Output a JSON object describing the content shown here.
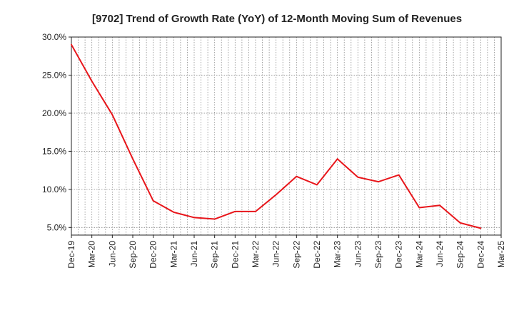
{
  "chart_data": {
    "type": "line",
    "title": "[9702]  Trend of Growth Rate (YoY) of 12-Month Moving Sum of Revenues",
    "xlabel": "",
    "ylabel": "",
    "ylim": [
      4.0,
      30.0
    ],
    "y_ticks": [
      {
        "value": 5.0,
        "label": "5.0%"
      },
      {
        "value": 10.0,
        "label": "10.0%"
      },
      {
        "value": 15.0,
        "label": "15.0%"
      },
      {
        "value": 20.0,
        "label": "20.0%"
      },
      {
        "value": 25.0,
        "label": "25.0%"
      },
      {
        "value": 30.0,
        "label": "30.0%"
      }
    ],
    "x_ticks": [
      "Dec-19",
      "Mar-20",
      "Jun-20",
      "Sep-20",
      "Dec-20",
      "Mar-21",
      "Jun-21",
      "Sep-21",
      "Dec-21",
      "Mar-22",
      "Jun-22",
      "Sep-22",
      "Dec-22",
      "Mar-23",
      "Jun-23",
      "Sep-23",
      "Dec-23",
      "Mar-24",
      "Jun-24",
      "Sep-24",
      "Dec-24",
      "Mar-25"
    ],
    "grid": true,
    "series": [
      {
        "color": "#e8161b",
        "x": [
          "Dec-19",
          "Mar-20",
          "Jun-20",
          "Sep-20",
          "Dec-20",
          "Mar-21",
          "Jun-21",
          "Sep-21",
          "Dec-21",
          "Mar-22",
          "Jun-22",
          "Sep-22",
          "Dec-22",
          "Mar-23",
          "Jun-23",
          "Sep-23",
          "Dec-23",
          "Mar-24",
          "Jun-24",
          "Sep-24",
          "Dec-24"
        ],
        "values": [
          29.0,
          24.2,
          19.8,
          14.0,
          8.5,
          7.0,
          6.3,
          6.1,
          7.1,
          7.1,
          9.3,
          11.7,
          10.6,
          14.0,
          11.6,
          11.0,
          11.9,
          7.6,
          7.9,
          5.6,
          4.9
        ]
      }
    ]
  }
}
